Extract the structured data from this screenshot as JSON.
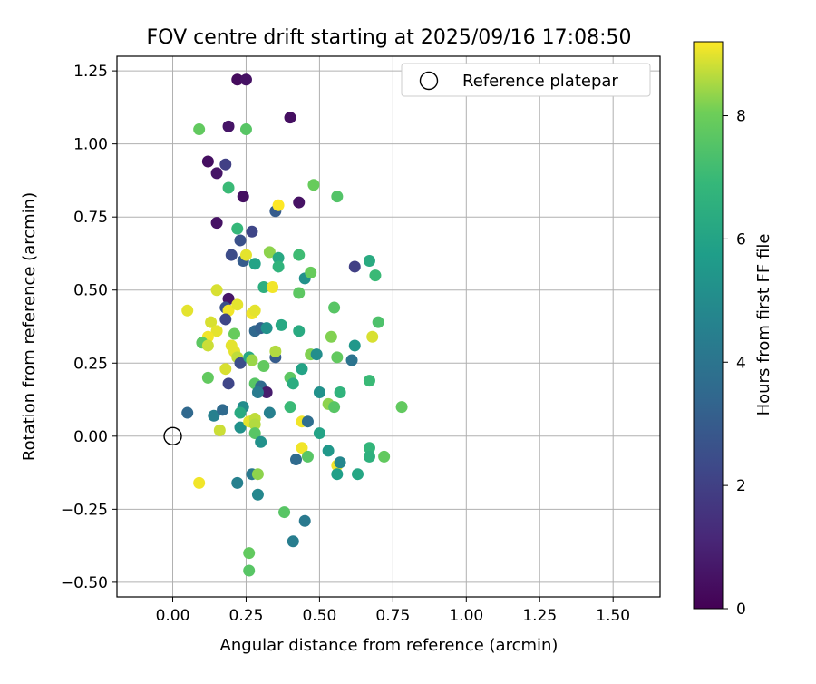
{
  "chart_data": {
    "type": "scatter",
    "title": "FOV centre drift starting at 2025/09/16 17:08:50",
    "xlabel": "Angular distance from reference (arcmin)",
    "ylabel": "Rotation from reference (arcmin)",
    "xlim": [
      -0.19,
      1.66
    ],
    "ylim": [
      -0.55,
      1.3
    ],
    "xticks": [
      0.0,
      0.25,
      0.5,
      0.75,
      1.0,
      1.25,
      1.5
    ],
    "xtick_labels": [
      "0.00",
      "0.25",
      "0.50",
      "0.75",
      "1.00",
      "1.25",
      "1.50"
    ],
    "yticks": [
      -0.5,
      -0.25,
      0.0,
      0.25,
      0.5,
      0.75,
      1.0,
      1.25
    ],
    "ytick_labels": [
      "−0.50",
      "−0.25",
      "0.00",
      "0.25",
      "0.50",
      "0.75",
      "1.00",
      "1.25"
    ],
    "grid": true,
    "legend": {
      "position": "top-right",
      "entries": [
        {
          "label": "Reference platepar",
          "marker": "open-circle"
        }
      ]
    },
    "colorbar": {
      "label": "Hours from first FF file",
      "colormap": "viridis",
      "range": [
        0,
        9.2
      ],
      "ticks": [
        0,
        2,
        4,
        6,
        8
      ],
      "tick_labels": [
        "0",
        "2",
        "4",
        "6",
        "8"
      ]
    },
    "reference_point": {
      "x": 0.0,
      "y": 0.0
    },
    "series": [
      {
        "name": "FOV centre",
        "marker": "filled-circle",
        "points": [
          {
            "x": 0.22,
            "y": 1.22,
            "c": 0.3
          },
          {
            "x": 0.25,
            "y": 1.22,
            "c": 0.5
          },
          {
            "x": 0.4,
            "y": 1.09,
            "c": 0.4
          },
          {
            "x": 0.19,
            "y": 1.06,
            "c": 0.6
          },
          {
            "x": 0.09,
            "y": 1.05,
            "c": 7.8
          },
          {
            "x": 0.25,
            "y": 1.05,
            "c": 7.6
          },
          {
            "x": 0.12,
            "y": 0.94,
            "c": 0.4
          },
          {
            "x": 0.15,
            "y": 0.9,
            "c": 0.6
          },
          {
            "x": 0.18,
            "y": 0.93,
            "c": 2.0
          },
          {
            "x": 0.19,
            "y": 0.85,
            "c": 7.0
          },
          {
            "x": 0.24,
            "y": 0.82,
            "c": 0.4
          },
          {
            "x": 0.43,
            "y": 0.8,
            "c": 0.5
          },
          {
            "x": 0.48,
            "y": 0.86,
            "c": 7.9
          },
          {
            "x": 0.56,
            "y": 0.82,
            "c": 7.5
          },
          {
            "x": 0.15,
            "y": 0.73,
            "c": 0.5
          },
          {
            "x": 0.22,
            "y": 0.71,
            "c": 6.9
          },
          {
            "x": 0.27,
            "y": 0.7,
            "c": 2.2
          },
          {
            "x": 0.35,
            "y": 0.77,
            "c": 3.0
          },
          {
            "x": 0.36,
            "y": 0.79,
            "c": 9.2
          },
          {
            "x": 0.23,
            "y": 0.67,
            "c": 2.6
          },
          {
            "x": 0.2,
            "y": 0.62,
            "c": 2.4
          },
          {
            "x": 0.24,
            "y": 0.6,
            "c": 3.0
          },
          {
            "x": 0.25,
            "y": 0.62,
            "c": 9.0
          },
          {
            "x": 0.28,
            "y": 0.59,
            "c": 6.0
          },
          {
            "x": 0.33,
            "y": 0.63,
            "c": 8.3
          },
          {
            "x": 0.36,
            "y": 0.61,
            "c": 6.2
          },
          {
            "x": 0.36,
            "y": 0.58,
            "c": 6.7
          },
          {
            "x": 0.43,
            "y": 0.62,
            "c": 7.1
          },
          {
            "x": 0.45,
            "y": 0.54,
            "c": 5.2
          },
          {
            "x": 0.47,
            "y": 0.56,
            "c": 7.9
          },
          {
            "x": 0.43,
            "y": 0.49,
            "c": 7.7
          },
          {
            "x": 0.62,
            "y": 0.58,
            "c": 2.0
          },
          {
            "x": 0.67,
            "y": 0.6,
            "c": 6.3
          },
          {
            "x": 0.69,
            "y": 0.55,
            "c": 7.0
          },
          {
            "x": 0.15,
            "y": 0.5,
            "c": 8.9
          },
          {
            "x": 0.19,
            "y": 0.47,
            "c": 0.6
          },
          {
            "x": 0.18,
            "y": 0.44,
            "c": 2.6
          },
          {
            "x": 0.19,
            "y": 0.43,
            "c": 9.1
          },
          {
            "x": 0.22,
            "y": 0.45,
            "c": 9.0
          },
          {
            "x": 0.27,
            "y": 0.42,
            "c": 9.1
          },
          {
            "x": 0.28,
            "y": 0.43,
            "c": 9.0
          },
          {
            "x": 0.31,
            "y": 0.51,
            "c": 6.5
          },
          {
            "x": 0.34,
            "y": 0.51,
            "c": 9.1
          },
          {
            "x": 0.05,
            "y": 0.43,
            "c": 9.0
          },
          {
            "x": 0.18,
            "y": 0.4,
            "c": 2.2
          },
          {
            "x": 0.13,
            "y": 0.39,
            "c": 8.9
          },
          {
            "x": 0.15,
            "y": 0.36,
            "c": 9.0
          },
          {
            "x": 0.12,
            "y": 0.34,
            "c": 9.1
          },
          {
            "x": 0.1,
            "y": 0.32,
            "c": 7.7
          },
          {
            "x": 0.12,
            "y": 0.31,
            "c": 8.8
          },
          {
            "x": 0.2,
            "y": 0.31,
            "c": 9.0
          },
          {
            "x": 0.21,
            "y": 0.35,
            "c": 7.9
          },
          {
            "x": 0.28,
            "y": 0.36,
            "c": 3.5
          },
          {
            "x": 0.3,
            "y": 0.37,
            "c": 3.2
          },
          {
            "x": 0.32,
            "y": 0.37,
            "c": 5.2
          },
          {
            "x": 0.37,
            "y": 0.38,
            "c": 6.2
          },
          {
            "x": 0.43,
            "y": 0.36,
            "c": 6.3
          },
          {
            "x": 0.55,
            "y": 0.44,
            "c": 7.6
          },
          {
            "x": 0.54,
            "y": 0.34,
            "c": 8.2
          },
          {
            "x": 0.7,
            "y": 0.39,
            "c": 7.4
          },
          {
            "x": 0.68,
            "y": 0.34,
            "c": 8.9
          },
          {
            "x": 0.62,
            "y": 0.31,
            "c": 5.5
          },
          {
            "x": 0.61,
            "y": 0.26,
            "c": 4.0
          },
          {
            "x": 0.21,
            "y": 0.29,
            "c": 9.0
          },
          {
            "x": 0.22,
            "y": 0.27,
            "c": 8.7
          },
          {
            "x": 0.23,
            "y": 0.25,
            "c": 2.5
          },
          {
            "x": 0.26,
            "y": 0.27,
            "c": 6.2
          },
          {
            "x": 0.27,
            "y": 0.26,
            "c": 8.4
          },
          {
            "x": 0.35,
            "y": 0.27,
            "c": 3.0
          },
          {
            "x": 0.35,
            "y": 0.29,
            "c": 8.6
          },
          {
            "x": 0.31,
            "y": 0.24,
            "c": 7.8
          },
          {
            "x": 0.44,
            "y": 0.23,
            "c": 6.0
          },
          {
            "x": 0.47,
            "y": 0.28,
            "c": 8.2
          },
          {
            "x": 0.49,
            "y": 0.28,
            "c": 5.1
          },
          {
            "x": 0.56,
            "y": 0.27,
            "c": 7.8
          },
          {
            "x": 0.18,
            "y": 0.23,
            "c": 8.9
          },
          {
            "x": 0.12,
            "y": 0.2,
            "c": 7.8
          },
          {
            "x": 0.19,
            "y": 0.18,
            "c": 2.2
          },
          {
            "x": 0.28,
            "y": 0.18,
            "c": 7.6
          },
          {
            "x": 0.3,
            "y": 0.17,
            "c": 3.6
          },
          {
            "x": 0.32,
            "y": 0.15,
            "c": 0.8
          },
          {
            "x": 0.29,
            "y": 0.15,
            "c": 4.3
          },
          {
            "x": 0.4,
            "y": 0.2,
            "c": 7.7
          },
          {
            "x": 0.41,
            "y": 0.18,
            "c": 6.4
          },
          {
            "x": 0.5,
            "y": 0.15,
            "c": 5.2
          },
          {
            "x": 0.53,
            "y": 0.11,
            "c": 8.3
          },
          {
            "x": 0.55,
            "y": 0.1,
            "c": 7.6
          },
          {
            "x": 0.57,
            "y": 0.15,
            "c": 6.7
          },
          {
            "x": 0.67,
            "y": 0.19,
            "c": 7.0
          },
          {
            "x": 0.78,
            "y": 0.1,
            "c": 7.8
          },
          {
            "x": 0.05,
            "y": 0.08,
            "c": 3.5
          },
          {
            "x": 0.14,
            "y": 0.07,
            "c": 4.5
          },
          {
            "x": 0.17,
            "y": 0.09,
            "c": 3.6
          },
          {
            "x": 0.24,
            "y": 0.1,
            "c": 5.0
          },
          {
            "x": 0.23,
            "y": 0.08,
            "c": 6.3
          },
          {
            "x": 0.23,
            "y": 0.03,
            "c": 5.2
          },
          {
            "x": 0.16,
            "y": 0.02,
            "c": 8.8
          },
          {
            "x": 0.26,
            "y": 0.05,
            "c": 9.0
          },
          {
            "x": 0.28,
            "y": 0.06,
            "c": 8.7
          },
          {
            "x": 0.28,
            "y": 0.04,
            "c": 8.6
          },
          {
            "x": 0.28,
            "y": 0.01,
            "c": 7.6
          },
          {
            "x": 0.3,
            "y": -0.02,
            "c": 5.2
          },
          {
            "x": 0.33,
            "y": 0.08,
            "c": 4.5
          },
          {
            "x": 0.4,
            "y": 0.1,
            "c": 7.0
          },
          {
            "x": 0.44,
            "y": 0.05,
            "c": 9.1
          },
          {
            "x": 0.46,
            "y": 0.05,
            "c": 3.7
          },
          {
            "x": 0.5,
            "y": 0.01,
            "c": 6.0
          },
          {
            "x": 0.42,
            "y": -0.08,
            "c": 3.6
          },
          {
            "x": 0.44,
            "y": -0.04,
            "c": 9.1
          },
          {
            "x": 0.46,
            "y": -0.07,
            "c": 7.6
          },
          {
            "x": 0.53,
            "y": -0.05,
            "c": 5.5
          },
          {
            "x": 0.56,
            "y": -0.1,
            "c": 9.1
          },
          {
            "x": 0.57,
            "y": -0.09,
            "c": 4.8
          },
          {
            "x": 0.56,
            "y": -0.13,
            "c": 5.8
          },
          {
            "x": 0.63,
            "y": -0.13,
            "c": 6.1
          },
          {
            "x": 0.67,
            "y": -0.04,
            "c": 6.8
          },
          {
            "x": 0.67,
            "y": -0.07,
            "c": 6.6
          },
          {
            "x": 0.72,
            "y": -0.07,
            "c": 7.8
          },
          {
            "x": 0.09,
            "y": -0.16,
            "c": 9.1
          },
          {
            "x": 0.22,
            "y": -0.16,
            "c": 4.5
          },
          {
            "x": 0.27,
            "y": -0.13,
            "c": 4.2
          },
          {
            "x": 0.29,
            "y": -0.13,
            "c": 8.3
          },
          {
            "x": 0.29,
            "y": -0.2,
            "c": 4.8
          },
          {
            "x": 0.38,
            "y": -0.26,
            "c": 7.6
          },
          {
            "x": 0.45,
            "y": -0.29,
            "c": 4.2
          },
          {
            "x": 0.41,
            "y": -0.36,
            "c": 4.4
          },
          {
            "x": 0.26,
            "y": -0.4,
            "c": 7.8
          },
          {
            "x": 0.26,
            "y": -0.46,
            "c": 7.6
          }
        ]
      }
    ]
  }
}
